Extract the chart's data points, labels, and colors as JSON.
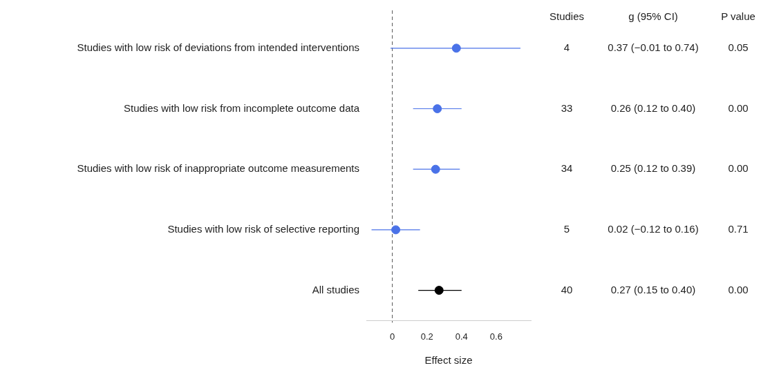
{
  "chart_data": {
    "type": "scatter",
    "orientation": "horizontal",
    "categories": [
      "Studies with low risk of deviations from intended interventions",
      "Studies with low risk from incomplete outcome data",
      "Studies with low risk of inappropriate outcome measurements",
      "Studies with low risk of selective reporting",
      "All studies"
    ],
    "series": [
      {
        "colors": [
          "#4a72e8",
          "#4a72e8",
          "#4a72e8",
          "#4a72e8",
          "#000000"
        ],
        "values": [
          0.37,
          0.26,
          0.25,
          0.02,
          0.27
        ],
        "errors": [
          [
            -0.01,
            0.74
          ],
          [
            0.12,
            0.4
          ],
          [
            0.12,
            0.39
          ],
          [
            -0.12,
            0.16
          ],
          [
            0.15,
            0.4
          ]
        ],
        "value_labels": [
          "0.37 (−0.01 to 0.74)",
          "0.26 (0.12 to 0.40)",
          "0.25 (0.12 to 0.39)",
          "0.02 (−0.12 to 0.16)",
          "0.27 (0.15 to 0.40)"
        ]
      }
    ],
    "xlabel": "Effect size",
    "xlim": [
      -0.15,
      0.8
    ],
    "xticks": [
      0,
      0.2,
      0.4,
      0.6
    ],
    "ref_lines": [
      {
        "axis": "x",
        "value": 0,
        "line_style": "dashed",
        "color": "#555555"
      }
    ],
    "annotations": [
      "Studies",
      "g (95% CI)",
      "P value",
      "4",
      "0.05",
      "33",
      "0.00",
      "34",
      "0.00",
      "5",
      "0.71",
      "40",
      "0.00"
    ],
    "marker": "circle",
    "grid": false,
    "legend": false
  }
}
